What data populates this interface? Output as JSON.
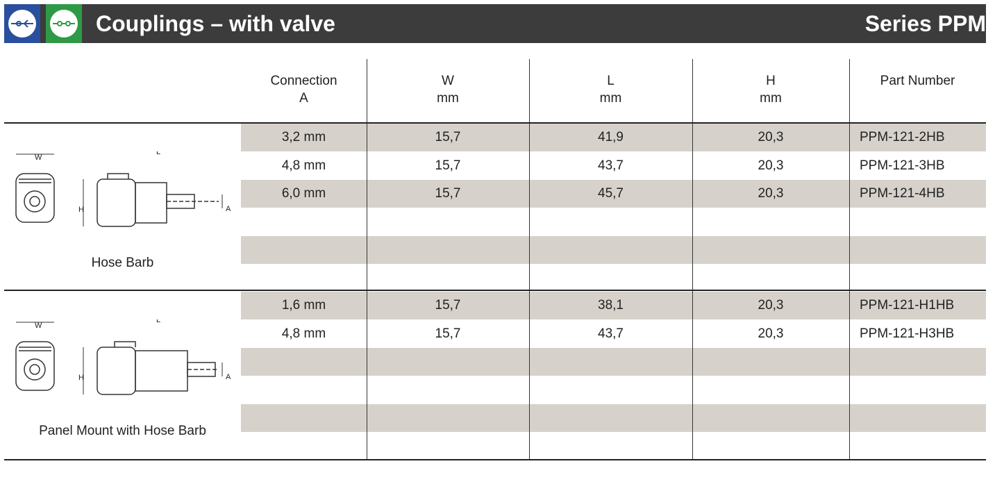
{
  "header": {
    "title": "Couplings – with valve",
    "series": "Series PPM"
  },
  "table": {
    "columns": [
      "Connection\nA",
      "W\nmm",
      "L\nmm",
      "H\nmm",
      "Part Number"
    ],
    "sections": [
      {
        "label": "Hose Barb",
        "dimension_labels": [
          "W",
          "L",
          "H",
          "A"
        ],
        "rows": [
          [
            "3,2 mm",
            "15,7",
            "41,9",
            "20,3",
            "PPM-121-2HB"
          ],
          [
            "4,8 mm",
            "15,7",
            "43,7",
            "20,3",
            "PPM-121-3HB"
          ],
          [
            "6,0 mm",
            "15,7",
            "45,7",
            "20,3",
            "PPM-121-4HB"
          ]
        ]
      },
      {
        "label": "Panel Mount with Hose Barb",
        "dimension_labels": [
          "W",
          "L",
          "H",
          "A"
        ],
        "rows": [
          [
            "1,6 mm",
            "15,7",
            "38,1",
            "20,3",
            "PPM-121-H1HB"
          ],
          [
            "4,8 mm",
            "15,7",
            "43,7",
            "20,3",
            "PPM-121-H3HB"
          ]
        ]
      }
    ]
  }
}
